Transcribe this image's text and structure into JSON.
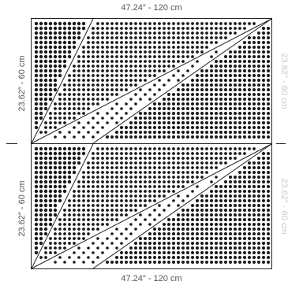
{
  "dimensions": {
    "top_width": "47.24″ - 120 cm",
    "bottom_width": "47.24″ - 120 cm",
    "left_height_top_panel": "23.62″ - 60 cm",
    "left_height_bottom_panel": "23.62″ - 60 cm",
    "right_height_top_panel": "23.62″ - 60 cm",
    "right_height_bottom_panel": "23.62″ - 60 cm"
  },
  "colors": {
    "dot": "#1a1a1a",
    "line": "#222222",
    "label": "#555555",
    "faded_label": "#c9c9c9"
  }
}
